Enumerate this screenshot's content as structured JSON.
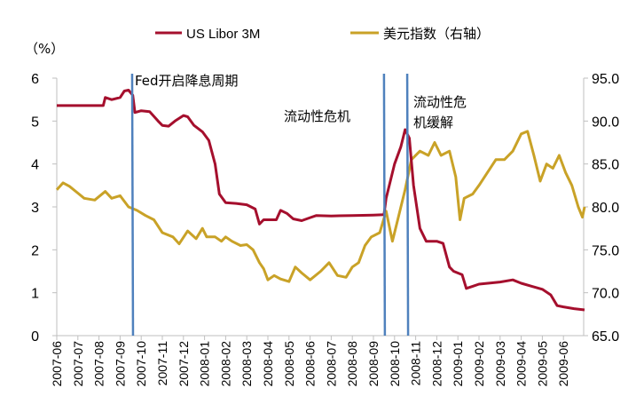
{
  "chart_data": {
    "type": "line",
    "title": "",
    "ylabel": "（%）",
    "ylim": [
      0,
      6
    ],
    "y2lim": [
      65,
      95
    ],
    "yticks": [
      "0",
      "1",
      "2",
      "3",
      "4",
      "5",
      "6"
    ],
    "y2ticks": [
      "65.0",
      "70.0",
      "75.0",
      "80.0",
      "85.0",
      "90.0",
      "95.0"
    ],
    "x_unit": "months since 2007-06-01",
    "xlim": [
      0,
      25
    ],
    "xticks": [
      "2007-06",
      "2007-07",
      "2007-08",
      "2007-09",
      "2007-10",
      "2007-11",
      "2007-12",
      "2008-01",
      "2008-02",
      "2008-03",
      "2008-04",
      "2008-05",
      "2008-06",
      "2008-07",
      "2008-08",
      "2008-09",
      "2008-10",
      "2008-11",
      "2008-12",
      "2009-01",
      "2009-02",
      "2009-03",
      "2009-04",
      "2009-05",
      "2009-06"
    ],
    "colors": {
      "libor": "#a50f2d",
      "dxy": "#c9a227",
      "vline": "#4f81bd"
    },
    "series": [
      {
        "name": "US Libor 3M",
        "axis": "left",
        "points": [
          [
            0,
            5.36
          ],
          [
            2.2,
            5.36
          ],
          [
            2.3,
            5.55
          ],
          [
            2.6,
            5.5
          ],
          [
            3.0,
            5.55
          ],
          [
            3.2,
            5.7
          ],
          [
            3.4,
            5.72
          ],
          [
            3.6,
            5.6
          ],
          [
            3.7,
            5.2
          ],
          [
            4.0,
            5.24
          ],
          [
            4.4,
            5.22
          ],
          [
            4.8,
            5.0
          ],
          [
            5.0,
            4.9
          ],
          [
            5.3,
            4.88
          ],
          [
            5.6,
            5.0
          ],
          [
            6.0,
            5.13
          ],
          [
            6.2,
            5.1
          ],
          [
            6.5,
            4.9
          ],
          [
            6.9,
            4.75
          ],
          [
            7.2,
            4.55
          ],
          [
            7.5,
            4.0
          ],
          [
            7.7,
            3.3
          ],
          [
            8.0,
            3.1
          ],
          [
            8.5,
            3.08
          ],
          [
            9.0,
            3.05
          ],
          [
            9.4,
            2.95
          ],
          [
            9.6,
            2.6
          ],
          [
            9.8,
            2.7
          ],
          [
            10.4,
            2.7
          ],
          [
            10.6,
            2.92
          ],
          [
            10.9,
            2.85
          ],
          [
            11.2,
            2.72
          ],
          [
            11.6,
            2.68
          ],
          [
            12.0,
            2.75
          ],
          [
            12.3,
            2.8
          ],
          [
            13,
            2.79
          ],
          [
            14,
            2.8
          ],
          [
            15.0,
            2.81
          ],
          [
            15.5,
            2.82
          ],
          [
            15.6,
            3.2
          ],
          [
            16.0,
            4.0
          ],
          [
            16.3,
            4.4
          ],
          [
            16.5,
            4.8
          ],
          [
            16.7,
            4.6
          ],
          [
            16.9,
            3.5
          ],
          [
            17.2,
            2.5
          ],
          [
            17.5,
            2.2
          ],
          [
            18.0,
            2.2
          ],
          [
            18.3,
            2.15
          ],
          [
            18.6,
            1.6
          ],
          [
            18.8,
            1.5
          ],
          [
            19.2,
            1.42
          ],
          [
            19.4,
            1.1
          ],
          [
            19.7,
            1.15
          ],
          [
            20.0,
            1.2
          ],
          [
            21.0,
            1.25
          ],
          [
            21.6,
            1.3
          ],
          [
            22.0,
            1.22
          ],
          [
            22.5,
            1.15
          ],
          [
            23.0,
            1.08
          ],
          [
            23.4,
            0.95
          ],
          [
            23.7,
            0.7
          ],
          [
            24.0,
            0.67
          ],
          [
            24.5,
            0.63
          ],
          [
            25,
            0.6
          ]
        ]
      },
      {
        "name": "美元指数（右轴）",
        "axis": "right",
        "points": [
          [
            0,
            82.0
          ],
          [
            0.3,
            82.8
          ],
          [
            0.6,
            82.4
          ],
          [
            1.0,
            81.6
          ],
          [
            1.3,
            81.0
          ],
          [
            1.8,
            80.8
          ],
          [
            2.3,
            81.8
          ],
          [
            2.6,
            81.0
          ],
          [
            3.0,
            81.3
          ],
          [
            3.4,
            80.0
          ],
          [
            3.8,
            79.6
          ],
          [
            4.2,
            79.0
          ],
          [
            4.6,
            78.5
          ],
          [
            5.0,
            77.0
          ],
          [
            5.5,
            76.5
          ],
          [
            5.8,
            75.7
          ],
          [
            6.2,
            77.2
          ],
          [
            6.6,
            76.3
          ],
          [
            6.9,
            77.5
          ],
          [
            7.1,
            76.5
          ],
          [
            7.5,
            76.5
          ],
          [
            7.8,
            76.0
          ],
          [
            8.0,
            76.5
          ],
          [
            8.3,
            76.0
          ],
          [
            8.7,
            75.5
          ],
          [
            9.0,
            75.6
          ],
          [
            9.3,
            75.0
          ],
          [
            9.6,
            73.5
          ],
          [
            9.8,
            72.8
          ],
          [
            10.0,
            71.5
          ],
          [
            10.3,
            72.0
          ],
          [
            10.6,
            71.6
          ],
          [
            11.0,
            71.3
          ],
          [
            11.3,
            73.0
          ],
          [
            11.6,
            72.3
          ],
          [
            12.0,
            71.5
          ],
          [
            12.5,
            72.5
          ],
          [
            12.9,
            73.5
          ],
          [
            13.3,
            72.0
          ],
          [
            13.7,
            71.8
          ],
          [
            14.0,
            73.0
          ],
          [
            14.3,
            73.5
          ],
          [
            14.6,
            75.5
          ],
          [
            14.9,
            76.5
          ],
          [
            15.3,
            77.0
          ],
          [
            15.6,
            79.5
          ],
          [
            15.9,
            76.0
          ],
          [
            16.1,
            78.0
          ],
          [
            16.5,
            82.0
          ],
          [
            16.8,
            85.5
          ],
          [
            17.2,
            86.5
          ],
          [
            17.6,
            86.0
          ],
          [
            17.9,
            87.5
          ],
          [
            18.2,
            86.0
          ],
          [
            18.6,
            86.5
          ],
          [
            18.9,
            83.5
          ],
          [
            19.1,
            78.5
          ],
          [
            19.3,
            81.0
          ],
          [
            19.7,
            81.5
          ],
          [
            20.0,
            82.5
          ],
          [
            20.4,
            84.0
          ],
          [
            20.8,
            85.5
          ],
          [
            21.2,
            85.5
          ],
          [
            21.6,
            86.5
          ],
          [
            22.0,
            88.5
          ],
          [
            22.3,
            88.8
          ],
          [
            22.6,
            86.0
          ],
          [
            22.9,
            83.0
          ],
          [
            23.2,
            85.0
          ],
          [
            23.5,
            84.5
          ],
          [
            23.8,
            86.0
          ],
          [
            24.1,
            84.0
          ],
          [
            24.4,
            82.5
          ],
          [
            24.7,
            80.0
          ],
          [
            24.9,
            78.8
          ],
          [
            25.0,
            80.0
          ]
        ]
      }
    ],
    "vlines": [
      3.57,
      15.5,
      16.6
    ],
    "annotations": [
      {
        "text": "Fed开启降息周期"
      },
      {
        "text": "流动性危机"
      },
      {
        "text": "流动性危",
        "text2": "机缓解"
      }
    ],
    "legend": "top"
  }
}
